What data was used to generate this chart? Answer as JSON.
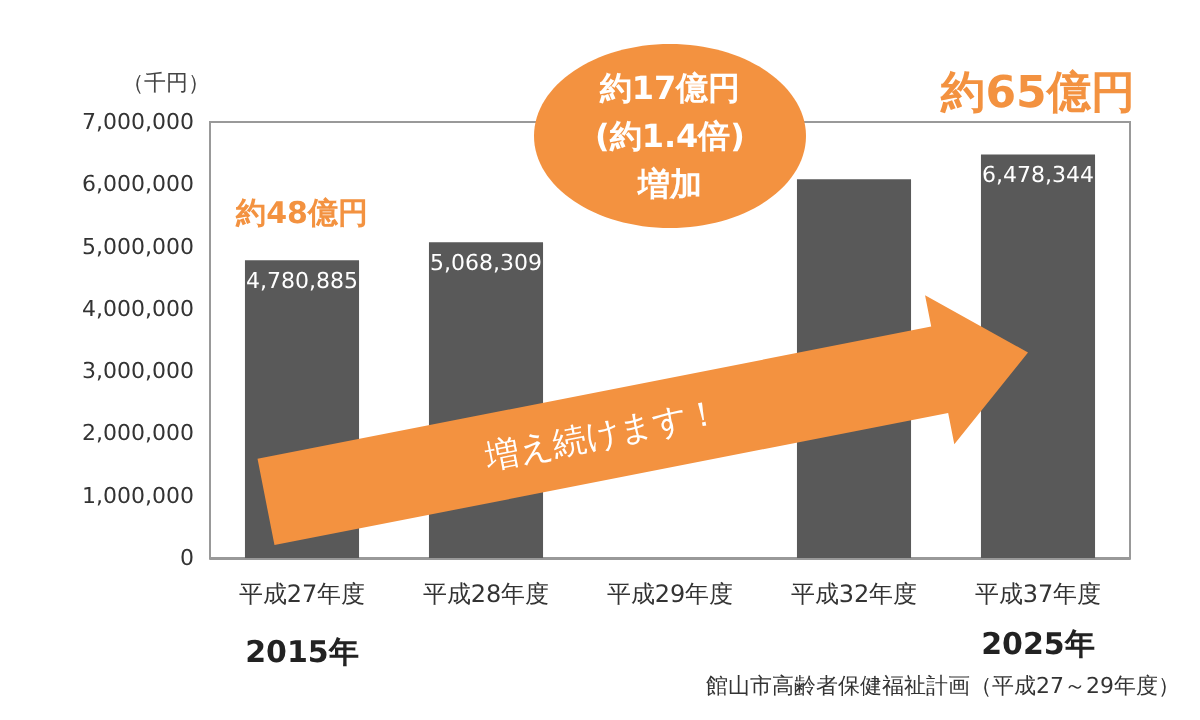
{
  "chart_data": {
    "type": "bar",
    "ylabel": "（千円）",
    "categories": [
      "平成27年度",
      "平成28年度",
      "平成29年度",
      "平成32年度",
      "平成37年度"
    ],
    "values": [
      4780885,
      5068309,
      null,
      6080000,
      6478344
    ],
    "value_labels": [
      "4,780,885",
      "5,068,309",
      null,
      null,
      "6,478,344"
    ],
    "color": "#595959",
    "ylim": [
      0,
      7000000
    ],
    "yticks": [
      0,
      {
        "value": 1000000,
        "label": "1,000,000"
      },
      {
        "value": 2000000,
        "label": "2,000,000"
      },
      {
        "value": 3000000,
        "label": "3,000,000"
      },
      {
        "value": 4000000,
        "label": "4,000,000"
      },
      {
        "value": 5000000,
        "label": "5,000,000"
      },
      {
        "value": 6000000,
        "label": "6,000,000"
      },
      {
        "value": 7000000,
        "label": "7,000,000"
      }
    ],
    "annotations": [
      "約48億円",
      "約17億円\n(約1.4倍)\n増加",
      "約65億円",
      "増え続けます！",
      "2015年",
      "2025年",
      "館山市高齢者保健福祉計画（平成27～29年度）"
    ]
  }
}
